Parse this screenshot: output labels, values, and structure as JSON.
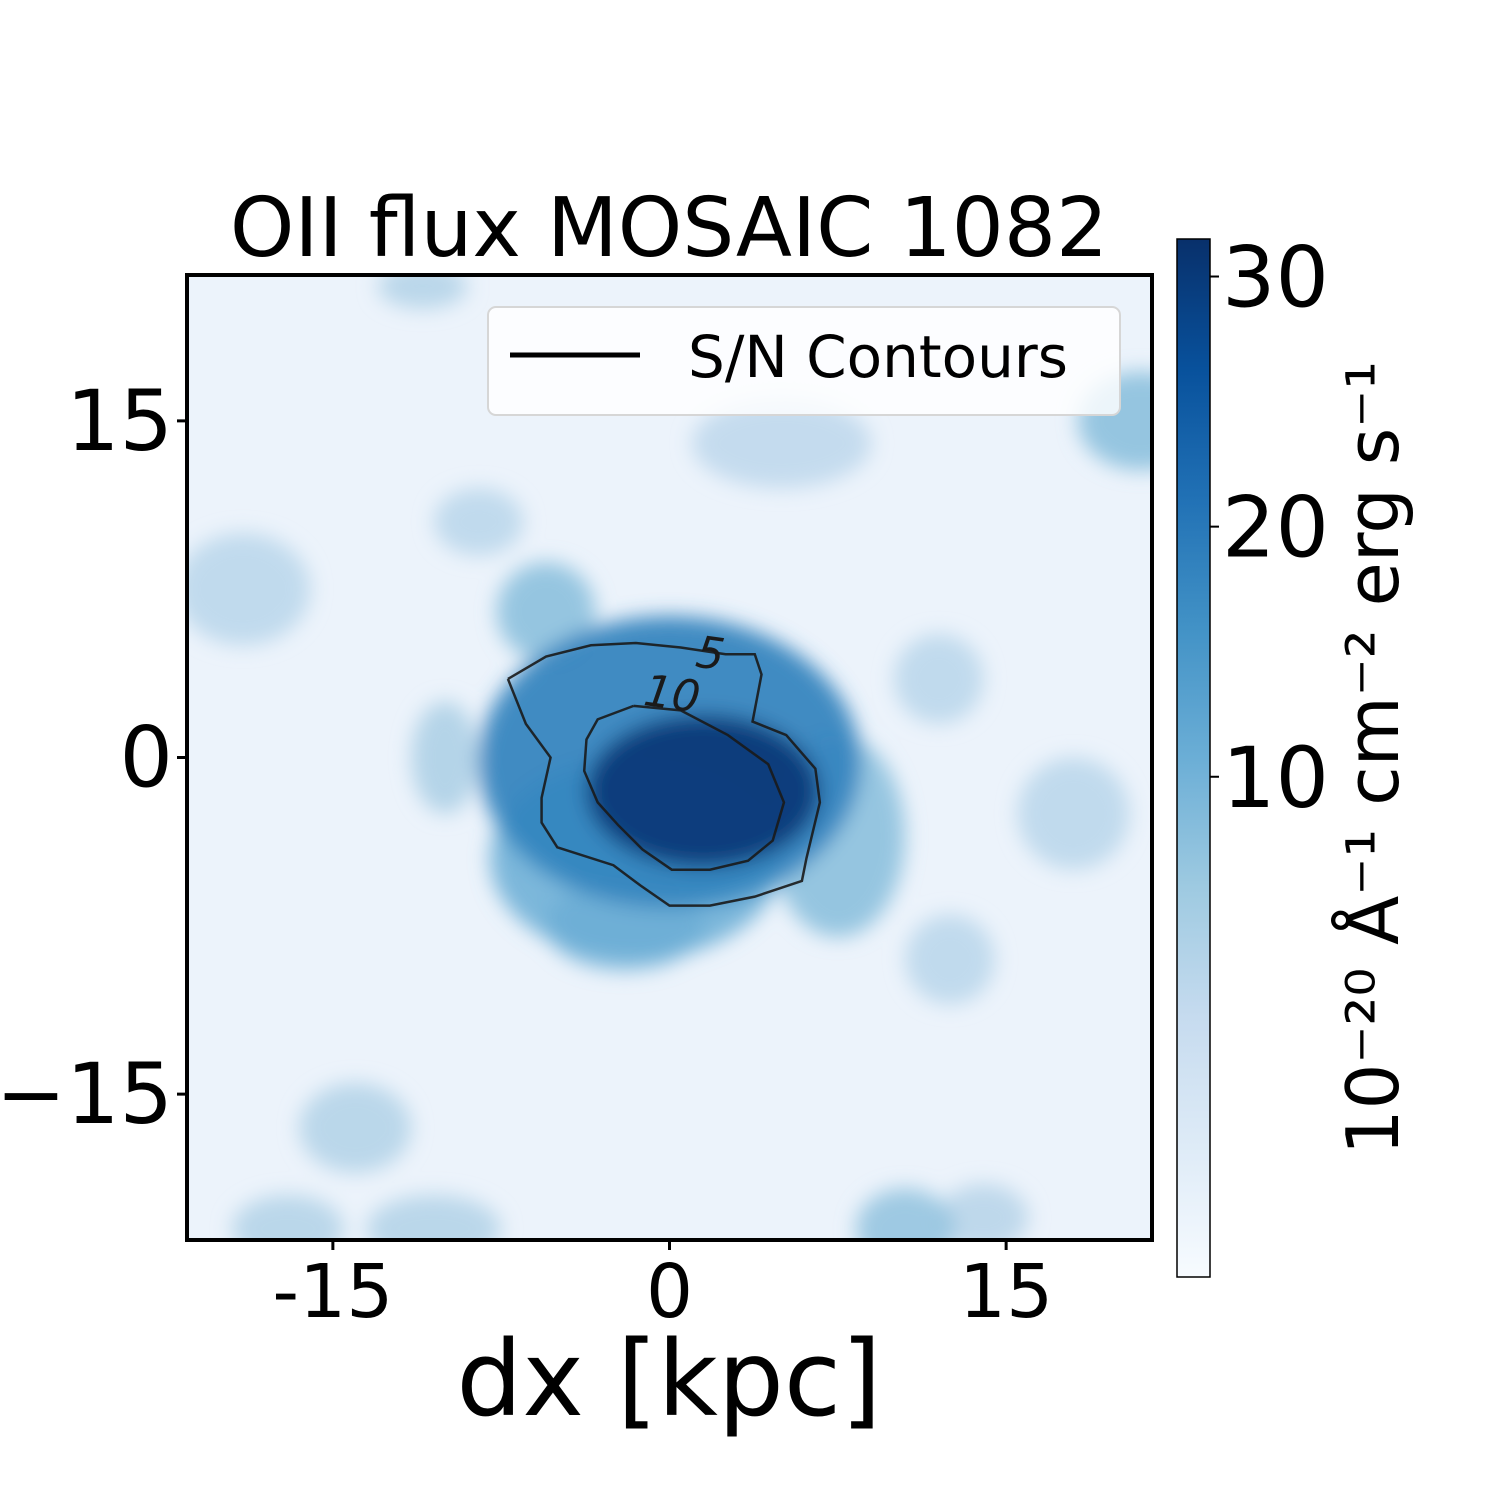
{
  "chart_data": {
    "type": "heatmap",
    "title": "OII flux MOSAIC 1082",
    "xlabel": "dx [kpc]",
    "ylabel": "",
    "xlim": [
      -21.5,
      21.5
    ],
    "ylim": [
      -21.5,
      21.5
    ],
    "x_ticks": [
      {
        "value": -15,
        "label": "-15"
      },
      {
        "value": 0,
        "label": "0"
      },
      {
        "value": 15,
        "label": "15"
      }
    ],
    "y_ticks": [
      {
        "value": 15,
        "label": "15"
      },
      {
        "value": 0,
        "label": "0"
      },
      {
        "value": -15,
        "label": "−15"
      }
    ],
    "colormap": "Blues",
    "colorbar": {
      "label": "10⁻²⁰ Å⁻¹ cm⁻² erg s⁻¹",
      "range": [
        -10,
        31.5
      ],
      "ticks": [
        {
          "value": 10,
          "label": "10"
        },
        {
          "value": 20,
          "label": "20"
        },
        {
          "value": 30,
          "label": "30"
        }
      ]
    },
    "peak": {
      "x": 1.5,
      "y": -1.5,
      "value": 30
    },
    "legend": {
      "position": "top-right",
      "entries": [
        {
          "label": "S/N Contours",
          "color": "#000000"
        }
      ]
    },
    "contours": [
      {
        "level": 5,
        "label": "5",
        "label_at": [
          1.8,
          4.5
        ],
        "points": [
          [
            -7.2,
            3.5
          ],
          [
            -5.5,
            4.5
          ],
          [
            -3.5,
            5
          ],
          [
            -1.5,
            5.1
          ],
          [
            0.5,
            4.9
          ],
          [
            2.5,
            4.6
          ],
          [
            3.8,
            4.6
          ],
          [
            4.1,
            3.7
          ],
          [
            3.7,
            1.6
          ],
          [
            5.2,
            1.0
          ],
          [
            6.5,
            -0.5
          ],
          [
            6.7,
            -2.0
          ],
          [
            6.1,
            -4.5
          ],
          [
            5.9,
            -5.5
          ],
          [
            3.8,
            -6.2
          ],
          [
            1.8,
            -6.6
          ],
          [
            0.0,
            -6.6
          ],
          [
            -1.3,
            -5.7
          ],
          [
            -2.5,
            -4.8
          ],
          [
            -5.0,
            -4.0
          ],
          [
            -5.7,
            -2.9
          ],
          [
            -5.7,
            -1.8
          ],
          [
            -5.3,
            0
          ],
          [
            -6.4,
            1.5
          ],
          [
            -7.2,
            3.5
          ]
        ]
      },
      {
        "level": 10,
        "label": "10",
        "label_at": [
          0.1,
          2.7
        ],
        "points": [
          [
            -1.6,
            2.3
          ],
          [
            -3.2,
            1.7
          ],
          [
            -3.7,
            0.8
          ],
          [
            -3.8,
            -0.6
          ],
          [
            -3.2,
            -2.0
          ],
          [
            -2.3,
            -3.0
          ],
          [
            -1.2,
            -4.1
          ],
          [
            0.1,
            -5.0
          ],
          [
            1.8,
            -5.0
          ],
          [
            3.5,
            -4.6
          ],
          [
            4.6,
            -3.7
          ],
          [
            5.1,
            -2.0
          ],
          [
            4.4,
            -0.3
          ],
          [
            2.6,
            1.0
          ],
          [
            0.5,
            2.1
          ],
          [
            -1.6,
            2.3
          ]
        ]
      }
    ],
    "blobs": [
      {
        "x": 1.5,
        "y": -1.5,
        "rx": 5.2,
        "ry": 3.4,
        "value": 30
      },
      {
        "x": 0.0,
        "y": -0.2,
        "rx": 8.5,
        "ry": 6.5,
        "value": 18
      },
      {
        "x": -1.5,
        "y": -4.5,
        "rx": 6.5,
        "ry": 4.5,
        "value": 11
      },
      {
        "x": -5.5,
        "y": 6.5,
        "rx": 2.2,
        "ry": 2.2,
        "value": 8
      },
      {
        "x": -2.0,
        "y": -7.5,
        "rx": 3.5,
        "ry": 2.0,
        "value": 9
      },
      {
        "x": 7.5,
        "y": -3.5,
        "rx": 3.0,
        "ry": 4.5,
        "value": 8
      },
      {
        "x": 21.0,
        "y": 15.0,
        "rx": 2.8,
        "ry": 2.2,
        "value": 8
      },
      {
        "x": 10.5,
        "y": -21.0,
        "rx": 2.2,
        "ry": 1.8,
        "value": 7
      },
      {
        "x": -14.0,
        "y": -16.5,
        "rx": 2.5,
        "ry": 2.0,
        "value": 3
      },
      {
        "x": -19.0,
        "y": 7.5,
        "rx": 3.0,
        "ry": 2.5,
        "value": 2
      },
      {
        "x": -17.0,
        "y": -21.0,
        "rx": 2.5,
        "ry": 1.5,
        "value": 3
      },
      {
        "x": -10.5,
        "y": -21.0,
        "rx": 3.0,
        "ry": 1.5,
        "value": 3
      },
      {
        "x": -10.0,
        "y": 0.0,
        "rx": 1.5,
        "ry": 2.5,
        "value": 4
      },
      {
        "x": 12.5,
        "y": -9.0,
        "rx": 2.0,
        "ry": 2.0,
        "value": 2
      },
      {
        "x": 18.0,
        "y": -2.5,
        "rx": 2.5,
        "ry": 2.5,
        "value": 2
      },
      {
        "x": -11.0,
        "y": 21.0,
        "rx": 2.0,
        "ry": 1.0,
        "value": 3
      },
      {
        "x": 12.0,
        "y": 3.5,
        "rx": 2.0,
        "ry": 2.0,
        "value": 2
      },
      {
        "x": -8.5,
        "y": 10.5,
        "rx": 2.0,
        "ry": 1.5,
        "value": 2
      },
      {
        "x": 5.0,
        "y": 14.0,
        "rx": 4.0,
        "ry": 2.0,
        "value": 1.5
      },
      {
        "x": 14.0,
        "y": -20.5,
        "rx": 2.0,
        "ry": 1.5,
        "value": 2.5
      }
    ]
  }
}
